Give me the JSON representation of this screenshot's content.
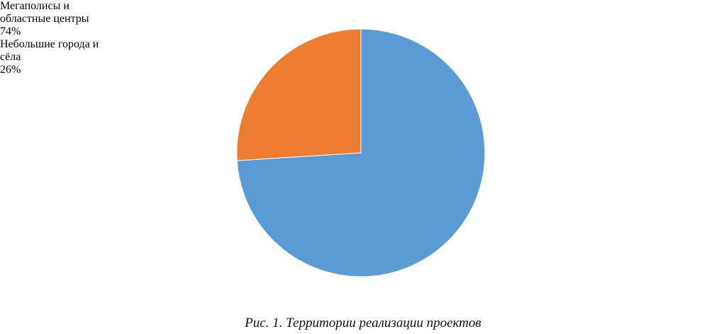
{
  "chart_data": {
    "type": "pie",
    "categories": [
      "Мегаполисы и областные центры",
      "Небольшие города и сёла"
    ],
    "values": [
      74,
      26
    ],
    "value_labels": [
      "74%",
      "26%"
    ],
    "colors": [
      "#5b9bd5",
      "#ed7d31"
    ],
    "caption": "Рис. 1. Территории реализации проектов"
  }
}
